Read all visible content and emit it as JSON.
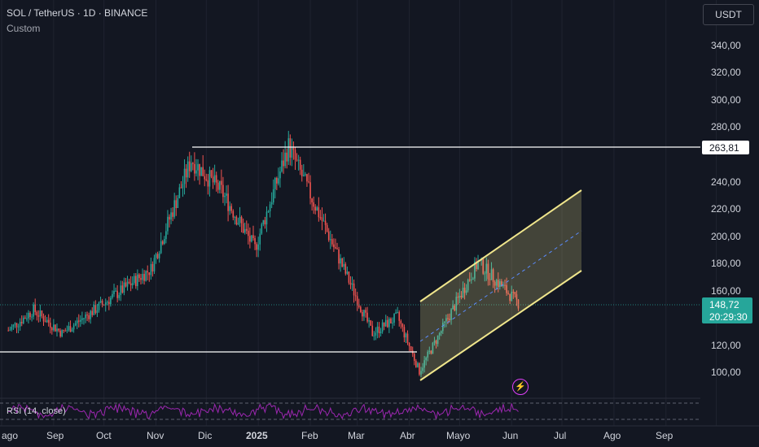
{
  "header": {
    "title": "SOL / TetherUS · 1D · BINANCE",
    "subtitle": "Custom",
    "currency": "USDT"
  },
  "price_axis": {
    "ticks": [
      "340,00",
      "320,00",
      "300,00",
      "280,00",
      "240,00",
      "220,00",
      "200,00",
      "180,00",
      "160,00",
      "120,00",
      "100,00"
    ]
  },
  "price_tags": {
    "level": "263,81",
    "last_price": "148,72",
    "countdown": "20:29:30"
  },
  "time_axis": {
    "ticks": [
      "ago",
      "Sep",
      "Oct",
      "Nov",
      "Dic",
      "2025",
      "Feb",
      "Mar",
      "Abr",
      "Mayo",
      "Jun",
      "Jul",
      "Ago",
      "Sep"
    ]
  },
  "indicator": {
    "label": "RSI (14, close)"
  },
  "colors": {
    "background": "#131722",
    "up": "#26a69a",
    "down": "#ef5350",
    "channel": "#f0e68c",
    "rsi": "#9c27b0",
    "last_price": "#26a69a"
  },
  "chart_data": {
    "type": "candlestick",
    "y_range": [
      90,
      350
    ],
    "key_points": [
      {
        "date": "2024-08-05",
        "close": 130
      },
      {
        "date": "2024-08-20",
        "close": 145
      },
      {
        "date": "2024-09-06",
        "close": 128
      },
      {
        "date": "2024-10-01",
        "close": 150
      },
      {
        "date": "2024-10-29",
        "close": 175
      },
      {
        "date": "2024-11-22",
        "close": 255
      },
      {
        "date": "2024-12-10",
        "close": 232
      },
      {
        "date": "2024-12-30",
        "close": 190
      },
      {
        "date": "2025-01-19",
        "close": 265
      },
      {
        "date": "2025-02-10",
        "close": 205
      },
      {
        "date": "2025-03-10",
        "close": 128
      },
      {
        "date": "2025-03-25",
        "close": 140
      },
      {
        "date": "2025-04-07",
        "close": 100
      },
      {
        "date": "2025-05-12",
        "close": 180
      },
      {
        "date": "2025-06-05",
        "close": 150
      }
    ],
    "horizontal_levels": [
      263.81,
      115
    ],
    "channel": {
      "start_date": "2025-04-07",
      "end_date": "2025-07-15",
      "lower": [
        95,
        175
      ],
      "upper": [
        155,
        232
      ],
      "mid": [
        125,
        203
      ]
    },
    "last_price": 148.72
  }
}
